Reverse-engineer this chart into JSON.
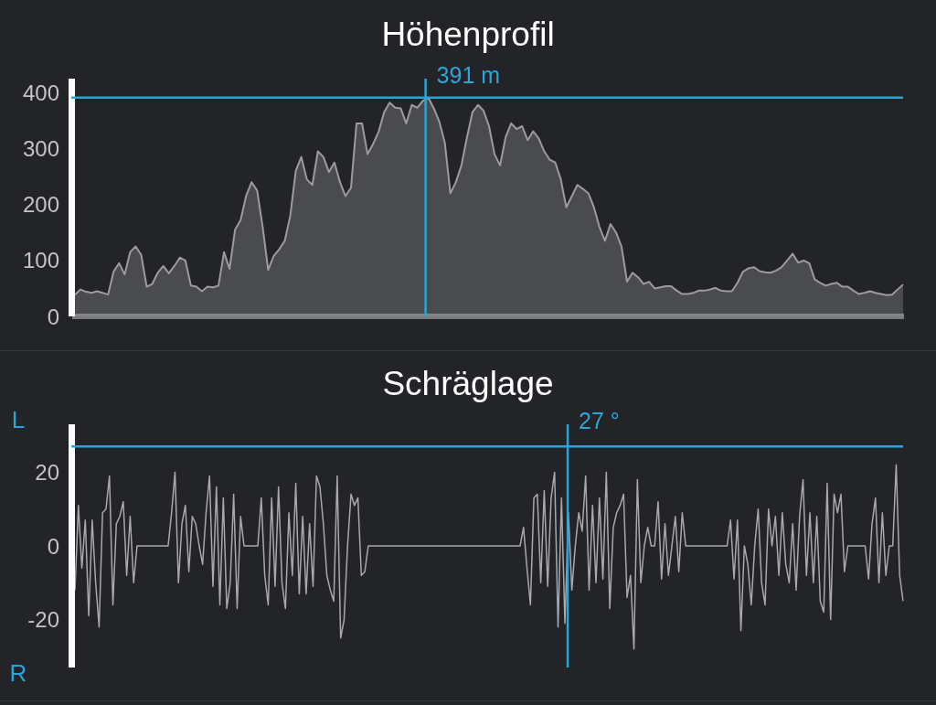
{
  "chart_data": [
    {
      "type": "area",
      "title": "Höhenprofil",
      "color": "#9c9c9e",
      "categories": [
        null,
        null,
        null,
        null,
        null,
        null,
        null,
        null,
        null,
        null,
        null,
        null,
        null,
        null,
        null,
        null,
        null,
        null,
        null,
        null,
        null,
        null,
        null,
        null,
        null,
        null,
        null,
        null,
        null,
        null,
        null,
        null,
        null,
        null,
        null,
        null,
        null,
        null,
        null,
        null,
        null,
        null,
        null,
        null,
        null,
        null,
        null,
        null,
        null,
        null,
        null,
        null,
        null,
        null,
        null,
        null,
        null,
        null,
        null,
        null,
        null,
        null,
        null,
        null,
        null,
        null,
        null,
        null,
        null,
        null,
        null,
        null,
        null,
        null,
        null,
        null,
        null,
        null,
        null,
        null,
        null,
        null,
        null,
        null,
        null,
        null,
        null,
        null,
        null,
        null,
        null,
        null,
        null,
        null,
        null,
        null,
        null,
        null,
        null,
        null,
        null,
        null,
        null,
        null,
        null,
        null,
        null,
        null,
        null,
        null,
        null,
        null,
        null,
        null,
        null,
        null,
        null,
        null,
        null,
        null,
        null,
        null,
        null,
        null,
        null,
        null,
        null,
        null,
        null,
        null,
        null,
        null,
        null,
        null,
        null,
        null,
        null,
        null,
        null,
        null,
        null,
        null,
        null,
        null,
        null,
        null,
        null,
        null,
        null,
        null,
        null
      ],
      "values": [
        39,
        48,
        44,
        42,
        45,
        42,
        39,
        80,
        95,
        75,
        115,
        125,
        110,
        53,
        58,
        78,
        90,
        77,
        90,
        105,
        100,
        55,
        53,
        45,
        53,
        52,
        55,
        115,
        85,
        155,
        172,
        215,
        240,
        225,
        160,
        83,
        108,
        120,
        135,
        180,
        260,
        285,
        245,
        235,
        295,
        285,
        258,
        275,
        240,
        215,
        230,
        345,
        345,
        290,
        308,
        330,
        365,
        382,
        373,
        372,
        345,
        378,
        373,
        385,
        391,
        372,
        348,
        310,
        220,
        240,
        270,
        320,
        365,
        378,
        368,
        340,
        290,
        270,
        320,
        345,
        335,
        340,
        315,
        331,
        318,
        295,
        280,
        275,
        245,
        195,
        215,
        235,
        228,
        220,
        195,
        160,
        135,
        165,
        150,
        125,
        62,
        78,
        70,
        58,
        62,
        50,
        52,
        54,
        54,
        46,
        40,
        40,
        42,
        46,
        46,
        48,
        51,
        46,
        45,
        45,
        60,
        80,
        86,
        88,
        81,
        79,
        78,
        82,
        88,
        100,
        112,
        96,
        100,
        95,
        66,
        60,
        55,
        58,
        60,
        53,
        53,
        46,
        40,
        42,
        45,
        42,
        40,
        38,
        39,
        48,
        57
      ],
      "ylim": [
        0,
        425
      ],
      "yticks": [
        0,
        100,
        200,
        300,
        400
      ],
      "tick_labels": "y",
      "ref_lines": [
        {
          "axis": "y",
          "value": 391,
          "label": "391 m",
          "color": "#2aa5dc"
        }
      ]
    },
    {
      "type": "line",
      "title": "Schräglage",
      "color": "#a9a9ab",
      "categories": [
        null,
        null,
        null,
        null,
        null,
        null,
        null,
        null,
        null,
        null,
        null,
        null,
        null,
        null,
        null,
        null,
        null,
        null,
        null,
        null,
        null,
        null,
        null,
        null,
        null,
        null,
        null,
        null,
        null,
        null,
        null,
        null,
        null,
        null,
        null,
        null,
        null,
        null,
        null,
        null,
        null,
        null,
        null,
        null,
        null,
        null,
        null,
        null,
        null,
        null,
        null,
        null,
        null,
        null,
        null,
        null,
        null,
        null,
        null,
        null,
        null,
        null,
        null,
        null,
        null,
        null,
        null,
        null,
        null,
        null,
        null,
        null,
        null,
        null,
        null,
        null,
        null,
        null,
        null,
        null,
        null,
        null,
        null,
        null,
        null,
        null,
        null,
        null,
        null,
        null,
        null,
        null,
        null,
        null,
        null,
        null,
        null,
        null,
        null,
        null,
        null,
        null,
        null,
        null,
        null,
        null,
        null,
        null,
        null,
        null,
        null,
        null,
        null,
        null,
        null,
        null,
        null,
        null,
        null,
        null,
        null,
        null,
        null,
        null,
        null,
        null,
        null,
        null,
        null,
        null,
        null,
        null,
        null,
        null,
        null,
        null,
        null,
        null,
        null,
        null,
        null,
        null,
        null,
        null,
        null,
        null,
        null,
        null,
        null,
        null,
        null,
        null,
        null,
        null,
        null,
        null,
        null,
        null,
        null,
        null,
        null,
        null,
        null,
        null,
        null,
        null,
        null,
        null,
        null,
        null,
        null,
        null,
        null,
        null,
        null,
        null,
        null,
        null,
        null,
        null,
        null,
        null,
        null,
        null,
        null,
        null,
        null,
        null,
        null,
        null,
        null,
        null,
        null,
        null,
        null,
        null,
        null,
        null,
        null,
        null,
        null,
        null,
        null,
        null,
        null,
        null,
        null,
        null,
        null,
        null,
        null,
        null,
        null,
        null,
        null,
        null,
        null,
        null,
        null,
        null,
        null,
        null,
        null,
        null,
        null,
        null,
        null,
        null,
        null,
        null,
        null,
        null,
        null,
        null,
        null,
        null,
        null,
        null,
        null,
        null,
        null
      ],
      "values": [
        -12,
        11,
        -6,
        7,
        -19,
        7,
        -10,
        -22,
        9,
        10,
        19,
        -16,
        6,
        8,
        12,
        -8,
        8,
        -10,
        0,
        0,
        0,
        0,
        0,
        0,
        0,
        0,
        0,
        0,
        9,
        20,
        -10,
        6,
        11,
        -7,
        8,
        6,
        0,
        -5,
        9,
        19,
        -11,
        16,
        -16,
        13,
        -17,
        -10,
        14,
        -17,
        8,
        0,
        0,
        0,
        0,
        0,
        13,
        -8,
        -16,
        13,
        -11,
        16,
        -10,
        -17,
        9,
        -8,
        17,
        -13,
        8,
        -13,
        6,
        -11,
        19,
        16,
        6,
        -8,
        -12,
        -15,
        19,
        -25,
        -20,
        0,
        14,
        11,
        13,
        -8,
        -7,
        0,
        0,
        0,
        0,
        0,
        0,
        0,
        0,
        0,
        0,
        0,
        0,
        0,
        0,
        0,
        0,
        0,
        0,
        0,
        0,
        0,
        0,
        0,
        0,
        0,
        0,
        0,
        0,
        0,
        0,
        0,
        0,
        0,
        0,
        0,
        0,
        0,
        0,
        0,
        0,
        0,
        0,
        0,
        0,
        0,
        5,
        -6,
        -16,
        13,
        14,
        -10,
        15,
        -11,
        13,
        20,
        -22,
        13,
        -21,
        9,
        -12,
        0,
        9,
        4,
        19,
        -12,
        11,
        -10,
        13,
        -9,
        20,
        -17,
        5,
        9,
        11,
        14,
        -14,
        -8,
        -28,
        18,
        -10,
        0,
        5,
        0,
        0,
        12,
        -9,
        6,
        -8,
        0,
        8,
        -7,
        9,
        0,
        0,
        0,
        0,
        0,
        0,
        0,
        0,
        0,
        0,
        0,
        0,
        0,
        7,
        -9,
        7,
        -23,
        0,
        -5,
        -16,
        0,
        10,
        -10,
        -16,
        10,
        0,
        8,
        -8,
        9,
        -5,
        -10,
        6,
        -12,
        8,
        18,
        -8,
        9,
        -10,
        8,
        -15,
        -18,
        17,
        -20,
        14,
        9,
        14,
        -7,
        0,
        0,
        0,
        0,
        0,
        0,
        -9,
        6,
        13,
        -10,
        9,
        -8,
        0,
        0,
        22,
        -8,
        -15
      ],
      "ylim": [
        -33,
        33
      ],
      "yticks": [
        -20,
        0,
        20
      ],
      "tick_labels": "y",
      "ref_lines": [
        {
          "axis": "y",
          "value": 27,
          "label": "27 °",
          "color": "#2aa5dc"
        }
      ],
      "annotations": [
        "L",
        "R"
      ]
    }
  ]
}
